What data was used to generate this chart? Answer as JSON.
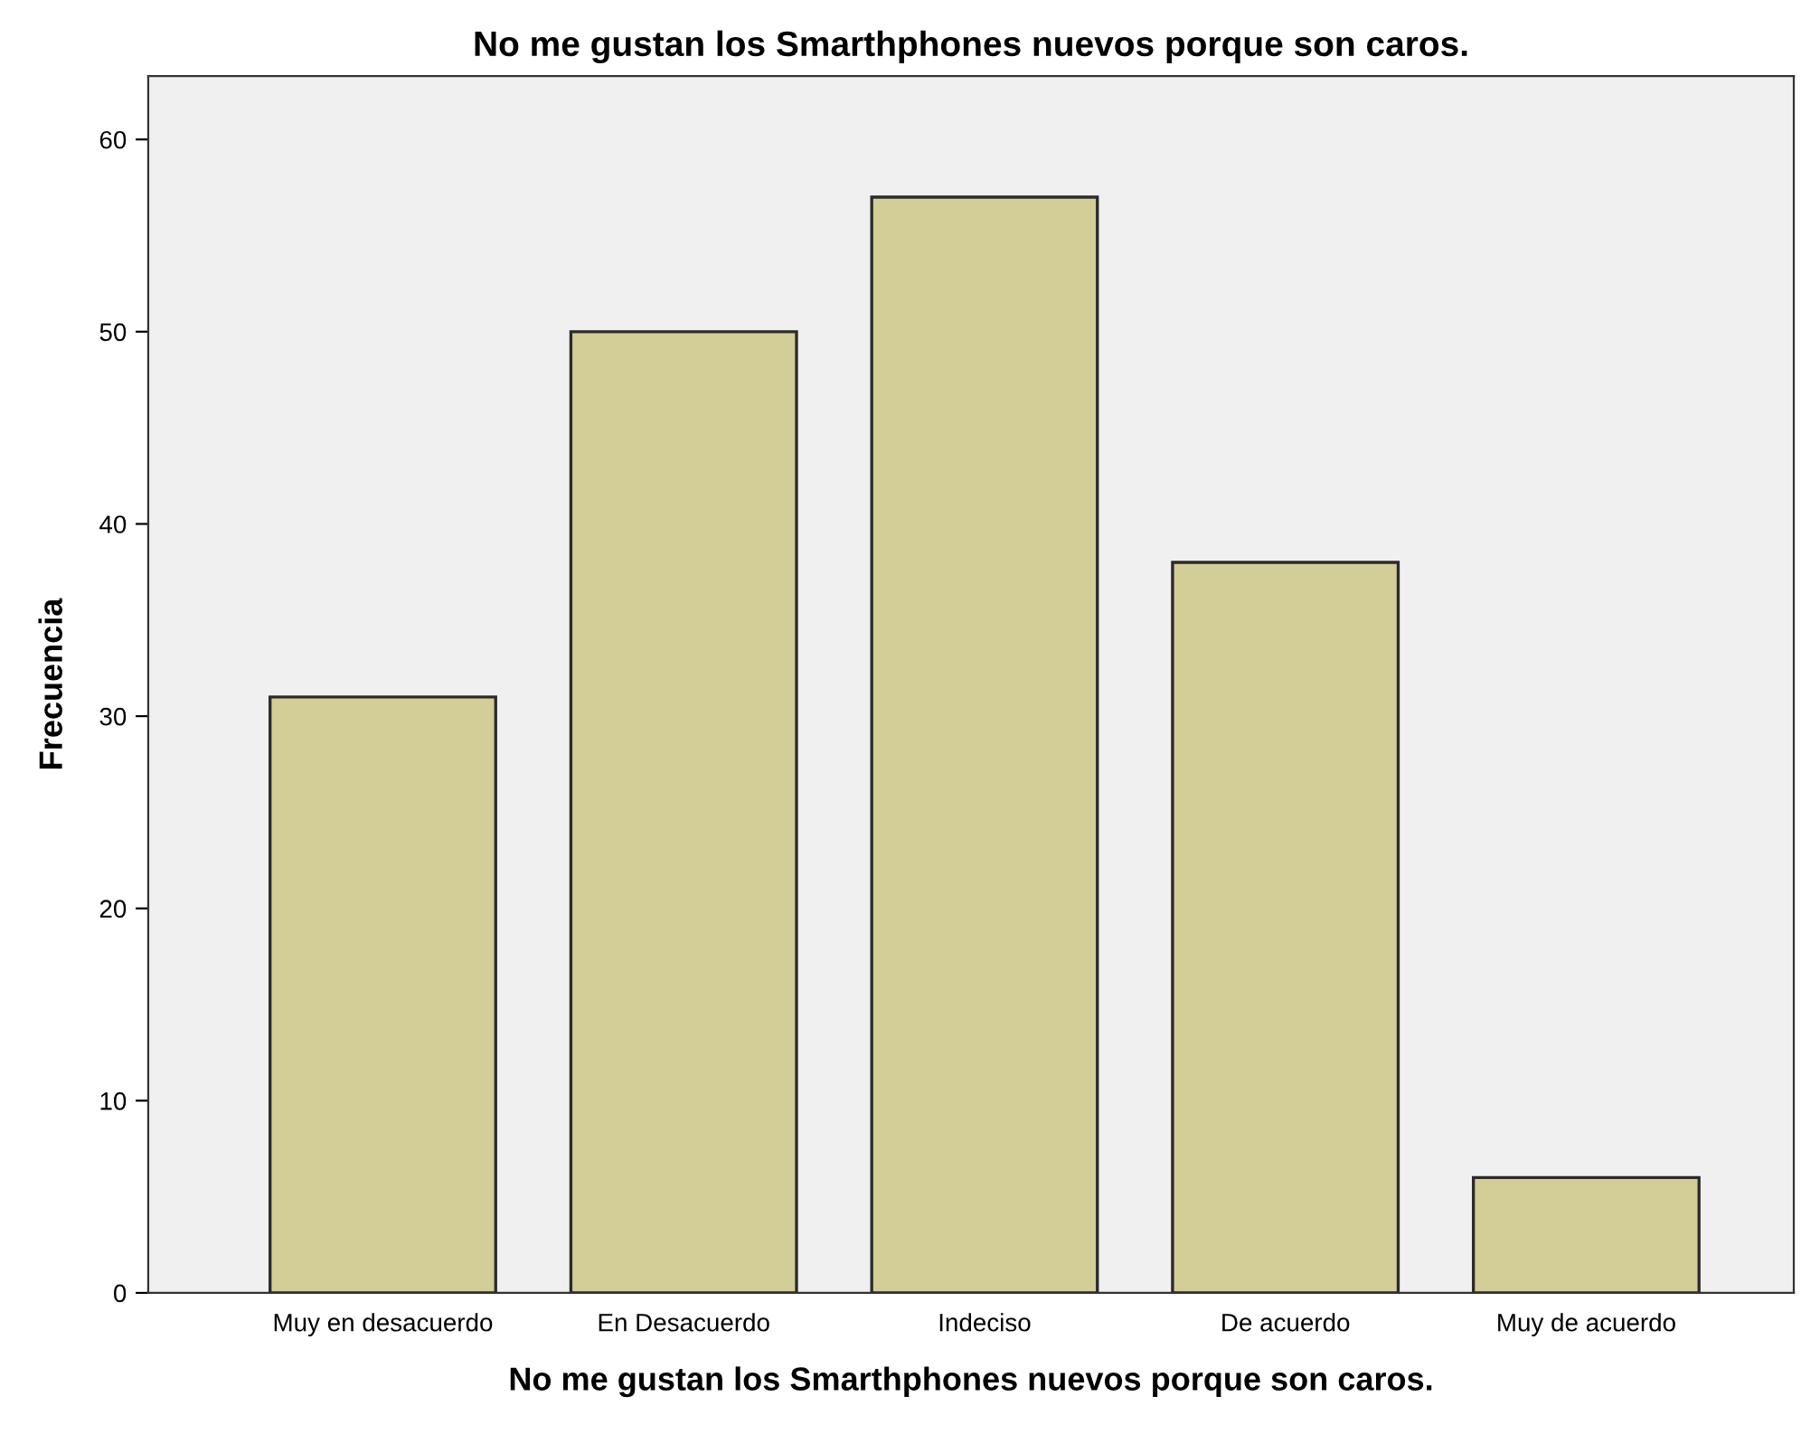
{
  "chart_data": {
    "type": "bar",
    "title": "No me gustan los Smarthphones nuevos porque son caros.",
    "xlabel": "No me gustan los Smarthphones nuevos porque son caros.",
    "ylabel": "Frecuencia",
    "categories": [
      "Muy en desacuerdo",
      "En Desacuerdo",
      "Indeciso",
      "De acuerdo",
      "Muy de acuerdo"
    ],
    "values": [
      31,
      50,
      57,
      38,
      6
    ],
    "color": "#d3ce97",
    "ylim": [
      0,
      63.3
    ],
    "yticks": [
      0,
      10,
      20,
      30,
      40,
      50,
      60
    ],
    "grid": false
  }
}
